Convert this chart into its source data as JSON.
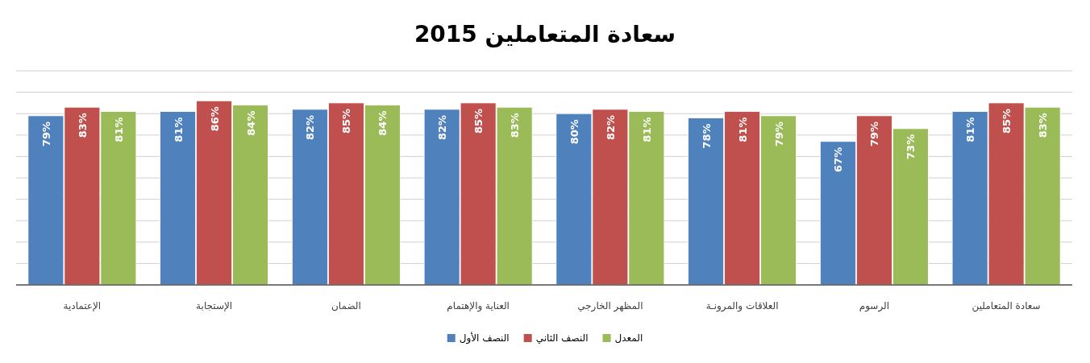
{
  "chart_data": {
    "type": "bar",
    "title": "سعادة المتعاملين 2015",
    "categories": [
      "الإعتمادية",
      "الإستجابة",
      "الضمان",
      "العناية والإهتمام",
      "المظهر الخارجي",
      "العلاقات والمرونـة",
      "الرسوم",
      "سعادة المتعاملين"
    ],
    "series": [
      {
        "name": "النصف الأول",
        "color": "#4f81bd",
        "values": [
          79,
          81,
          82,
          82,
          80,
          78,
          67,
          81
        ],
        "value_labels": [
          "79%",
          "81%",
          "82%",
          "82%",
          "80%",
          "78%",
          "67%",
          "81%"
        ]
      },
      {
        "name": "النصف الثاني",
        "color": "#c0504d",
        "values": [
          83,
          86,
          85,
          85,
          82,
          81,
          79,
          85
        ],
        "value_labels": [
          "83%",
          "86%",
          "85%",
          "85%",
          "82%",
          "81%",
          "79%",
          "85%"
        ]
      },
      {
        "name": "المعدل",
        "color": "#9bbb59",
        "values": [
          81,
          84,
          84,
          83,
          81,
          79,
          73,
          83
        ],
        "value_labels": [
          "81%",
          "84%",
          "84%",
          "83%",
          "81%",
          "79%",
          "73%",
          "83%"
        ]
      }
    ],
    "ylim": [
      0,
      100
    ],
    "yticks": [
      {
        "value": 0,
        "label": null
      },
      {
        "value": 10,
        "label": null
      },
      {
        "value": 20,
        "label": null
      },
      {
        "value": 30,
        "label": null
      },
      {
        "value": 40,
        "label": null
      },
      {
        "value": 50,
        "label": null
      },
      {
        "value": 60,
        "label": null
      },
      {
        "value": 70,
        "label": null
      },
      {
        "value": 80,
        "label": null
      },
      {
        "value": 90,
        "label": null
      },
      {
        "value": 100,
        "label": null
      }
    ],
    "tick_labels": "x",
    "grid": "y",
    "legend": "bottom"
  }
}
